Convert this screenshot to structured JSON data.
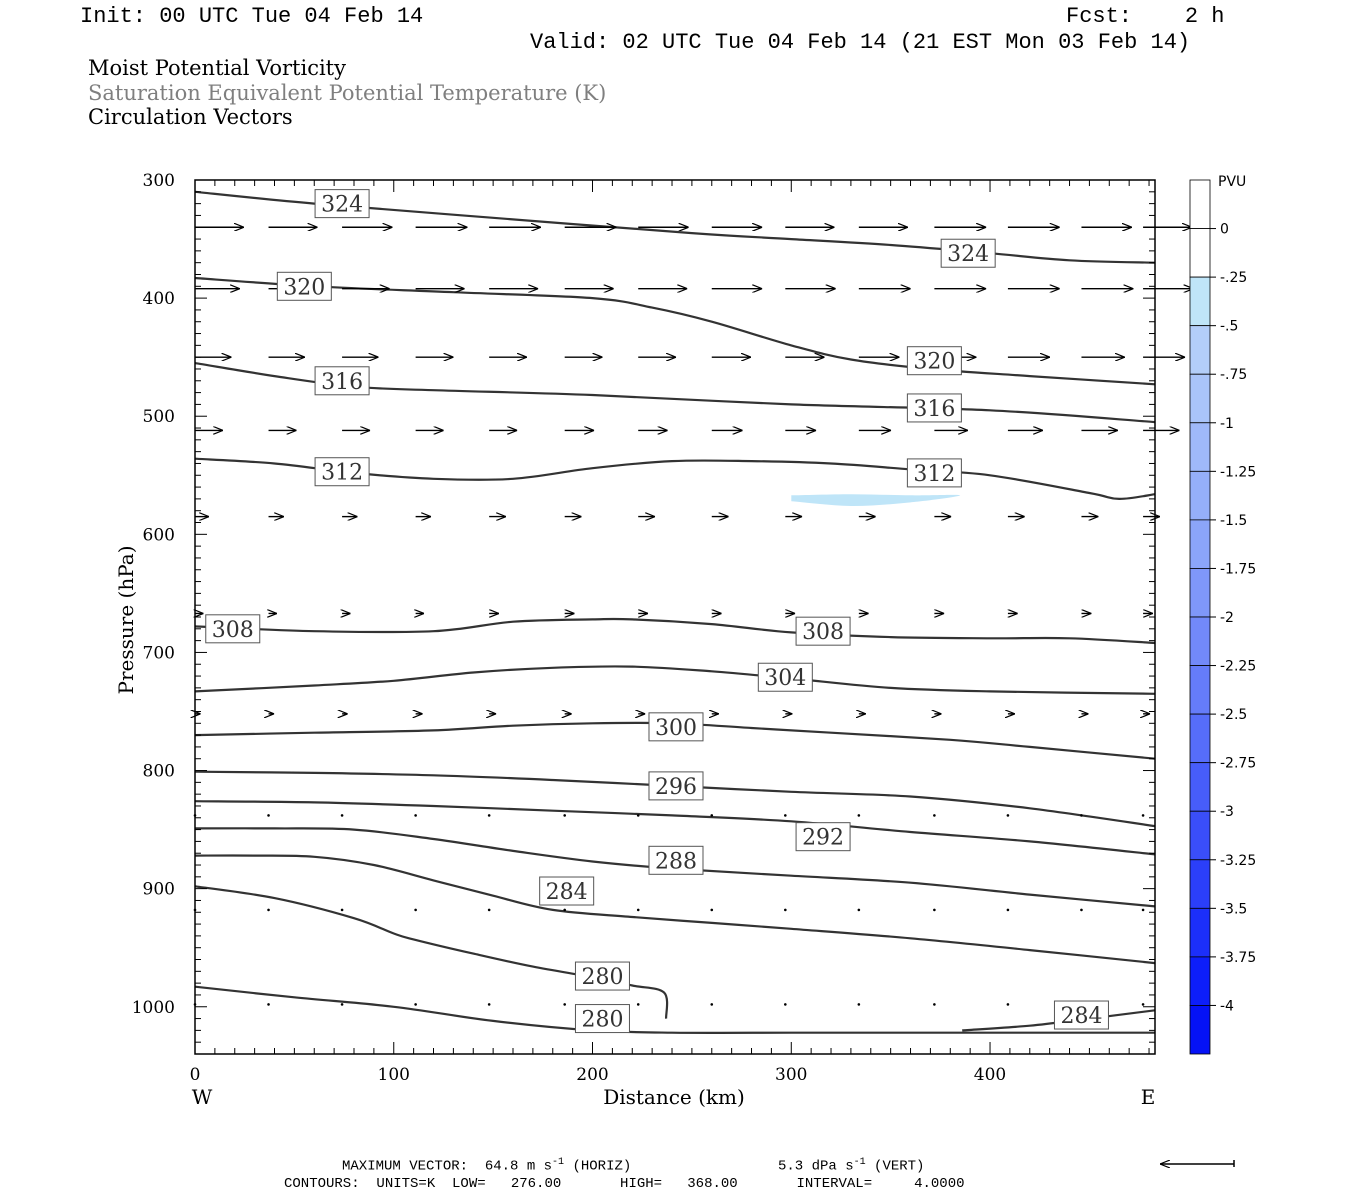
{
  "header": {
    "init": "Init: 00 UTC Tue 04 Feb 14",
    "fcst": "Fcst:    2 h",
    "valid": "Valid: 02 UTC Tue 04 Feb 14 (21 EST Mon 03 Feb 14)"
  },
  "titles": {
    "line1": "Moist Potential Vorticity",
    "line2": "Saturation Equivalent Potential Temperature (K)",
    "line3": "Circulation Vectors"
  },
  "colors": {
    "contour": "#333333",
    "title2": "#7f7f7f",
    "pv_fill": "#bfe5f8"
  },
  "chart_data": {
    "type": "contour",
    "xlabel": "Distance (km)",
    "ylabel": "Pressure (hPa)",
    "x_ticks": [
      0,
      100,
      200,
      300,
      400
    ],
    "x_range": [
      0,
      483
    ],
    "y_ticks": [
      300,
      400,
      500,
      600,
      700,
      800,
      900,
      1000
    ],
    "y_range": [
      1040,
      300
    ],
    "left_end_label": "W",
    "right_end_label": "E",
    "contour_interval": 4,
    "contour_units": "K",
    "contours": [
      {
        "level": 324,
        "x": [
          0,
          60,
          150,
          250,
          300,
          350,
          400,
          440,
          483
        ],
        "y": [
          310,
          320,
          332,
          345,
          350,
          355,
          362,
          368,
          370
        ],
        "labels": [
          {
            "x": 74,
            "y": 320
          },
          {
            "x": 389,
            "y": 362
          }
        ]
      },
      {
        "level": 320,
        "x": [
          0,
          60,
          130,
          200,
          230,
          260,
          300,
          330,
          370,
          420,
          483
        ],
        "y": [
          383,
          390,
          395,
          400,
          408,
          420,
          440,
          452,
          460,
          466,
          473
        ],
        "labels": [
          {
            "x": 55,
            "y": 390
          },
          {
            "x": 372,
            "y": 453
          }
        ]
      },
      {
        "level": 316,
        "x": [
          0,
          40,
          80,
          120,
          200,
          300,
          400,
          483
        ],
        "y": [
          455,
          466,
          475,
          478,
          482,
          490,
          495,
          505
        ],
        "labels": [
          {
            "x": 74,
            "y": 470
          },
          {
            "x": 372,
            "y": 493
          }
        ]
      },
      {
        "level": 312,
        "x": [
          0,
          40,
          80,
          120,
          160,
          200,
          240,
          280,
          320,
          360,
          400,
          450,
          465,
          483
        ],
        "y": [
          536,
          540,
          548,
          553,
          553,
          544,
          538,
          538,
          540,
          545,
          550,
          565,
          570,
          566
        ],
        "labels": [
          {
            "x": 74,
            "y": 547
          },
          {
            "x": 372,
            "y": 548
          }
        ]
      },
      {
        "level": 308,
        "x": [
          0,
          60,
          120,
          160,
          200,
          220,
          260,
          300,
          350,
          400,
          440,
          483
        ],
        "y": [
          678,
          682,
          682,
          674,
          672,
          672,
          676,
          683,
          687,
          688,
          688,
          692
        ],
        "labels": [
          {
            "x": 19,
            "y": 680
          },
          {
            "x": 316,
            "y": 682
          }
        ]
      },
      {
        "level": 304,
        "x": [
          0,
          60,
          100,
          140,
          180,
          220,
          260,
          300,
          350,
          400,
          483
        ],
        "y": [
          733,
          728,
          724,
          717,
          713,
          712,
          716,
          722,
          730,
          733,
          735
        ],
        "labels": [
          {
            "x": 297,
            "y": 721
          }
        ]
      },
      {
        "level": 300,
        "x": [
          0,
          60,
          120,
          160,
          200,
          240,
          280,
          320,
          380,
          420,
          483
        ],
        "y": [
          770,
          768,
          766,
          762,
          760,
          760,
          764,
          768,
          774,
          780,
          790
        ],
        "labels": [
          {
            "x": 242,
            "y": 763
          }
        ]
      },
      {
        "level": 296,
        "x": [
          0,
          60,
          120,
          180,
          240,
          300,
          360,
          420,
          483
        ],
        "y": [
          801,
          802,
          804,
          808,
          813,
          818,
          822,
          832,
          847
        ],
        "labels": [
          {
            "x": 242,
            "y": 813
          }
        ]
      },
      {
        "level": 292,
        "x": [
          0,
          60,
          120,
          180,
          240,
          300,
          360,
          420,
          483
        ],
        "y": [
          826,
          827,
          830,
          834,
          838,
          843,
          852,
          860,
          871
        ],
        "labels": [
          {
            "x": 316,
            "y": 856
          }
        ]
      },
      {
        "level": 288,
        "x": [
          0,
          40,
          80,
          120,
          160,
          200,
          240,
          300,
          360,
          420,
          483
        ],
        "y": [
          849,
          849,
          850,
          858,
          868,
          877,
          883,
          889,
          895,
          905,
          915
        ],
        "labels": [
          {
            "x": 242,
            "y": 876
          }
        ]
      },
      {
        "level": 284,
        "x": [
          0,
          30,
          60,
          90,
          120,
          150,
          180,
          220,
          260,
          300,
          360,
          420,
          483
        ],
        "y": [
          872,
          872,
          873,
          880,
          893,
          906,
          918,
          924,
          929,
          934,
          942,
          952,
          963
        ],
        "labels": [
          {
            "x": 187,
            "y": 902
          }
        ]
      },
      {
        "level": 280,
        "x": [
          0,
          40,
          80,
          100,
          110,
          140,
          170,
          200,
          220,
          236,
          237
        ],
        "y": [
          898,
          908,
          925,
          938,
          943,
          955,
          966,
          975,
          982,
          988,
          1010
        ],
        "labels": [
          {
            "x": 205,
            "y": 974
          }
        ]
      },
      {
        "level": 280,
        "x": [
          0,
          50,
          100,
          150,
          200,
          240,
          300,
          350,
          400,
          483
        ],
        "y": [
          983,
          992,
          1000,
          1012,
          1020,
          1022,
          1022,
          1022,
          1022,
          1022
        ],
        "labels": [
          {
            "x": 205,
            "y": 1010
          }
        ]
      },
      {
        "level": 284,
        "x": [
          386,
          420,
          450,
          483
        ],
        "y": [
          1020,
          1016,
          1010,
          1003
        ],
        "labels": [
          {
            "x": 446,
            "y": 1007
          }
        ]
      }
    ],
    "pv_fill": {
      "level_range": [
        -0.5,
        -0.25
      ],
      "x": [
        300,
        330,
        360,
        385,
        360,
        330,
        300
      ],
      "y": [
        567,
        566,
        567,
        567,
        573,
        576,
        572
      ]
    },
    "vectors": {
      "x": [
        0,
        37,
        74,
        111,
        148,
        186,
        223,
        260,
        297,
        334,
        372,
        409,
        446,
        477
      ],
      "rows": [
        {
          "p": 340,
          "u": [
            35,
            35,
            36,
            37,
            37,
            37,
            36,
            36,
            35,
            35,
            37,
            37,
            36,
            35
          ]
        },
        {
          "p": 392,
          "u": [
            32,
            33,
            34,
            35,
            35,
            35,
            35,
            36,
            36,
            37,
            37,
            37,
            37,
            36
          ]
        },
        {
          "p": 450,
          "u": [
            26,
            26,
            26,
            27,
            27,
            27,
            27,
            28,
            28,
            29,
            30,
            30,
            31,
            30
          ]
        },
        {
          "p": 512,
          "u": [
            20,
            20,
            20,
            20,
            20,
            21,
            21,
            22,
            22,
            23,
            24,
            25,
            26,
            26
          ]
        },
        {
          "p": 585,
          "u": [
            10,
            11,
            11,
            11,
            12,
            12,
            12,
            12,
            12,
            12,
            12,
            12,
            12,
            12
          ]
        },
        {
          "p": 667,
          "u": [
            6,
            6,
            6,
            6,
            7,
            7,
            7,
            7,
            7,
            7,
            7,
            7,
            7,
            7
          ]
        },
        {
          "p": 752,
          "u": [
            4,
            4,
            4,
            5,
            5,
            5,
            5,
            5,
            5,
            5,
            5,
            5,
            5,
            5
          ]
        },
        {
          "p": 838,
          "u": [
            2,
            2,
            2,
            2,
            2,
            2,
            2,
            2,
            2,
            2,
            2,
            2,
            2,
            2
          ]
        },
        {
          "p": 918,
          "u": [
            2,
            2,
            2,
            2,
            2,
            2,
            2,
            2,
            2,
            2,
            2,
            2,
            2,
            2
          ]
        },
        {
          "p": 998,
          "u": [
            2,
            2,
            2,
            2,
            2,
            2,
            2,
            2,
            2,
            2,
            2,
            2,
            2,
            2
          ]
        }
      ]
    },
    "colorbar": {
      "unit": "PVU",
      "labels": [
        "0",
        "-.25",
        "-.5",
        "-.75",
        "-1",
        "-1.25",
        "-1.5",
        "-1.75",
        "-2",
        "-2.25",
        "-2.5",
        "-2.75",
        "-3",
        "-3.25",
        "-3.5",
        "-3.75",
        "-4"
      ],
      "colors": [
        "#ffffff",
        "#ffffff",
        "#bfe5f8",
        "#b3cef9",
        "#a9c4f9",
        "#9fb9f9",
        "#95aff9",
        "#8ba5f9",
        "#7f97f9",
        "#7289f9",
        "#657cf9",
        "#566df9",
        "#475df9",
        "#3a4ef9",
        "#2b3ff9",
        "#1c2ff9",
        "#0d1ef9",
        "#0512f6"
      ]
    }
  },
  "footer": {
    "max_vector": "MAXIMUM VECTOR:  64.8 m s",
    "max_vector_exp": "-1",
    "horiz": " (HORIZ)",
    "vert": "5.3 dPa s",
    "vert_exp": "-1",
    "vert_tail": " (VERT)",
    "contours": "CONTOURS:  UNITS=K  LOW=   276.00       HIGH=   368.00       INTERVAL=     4.0000"
  }
}
